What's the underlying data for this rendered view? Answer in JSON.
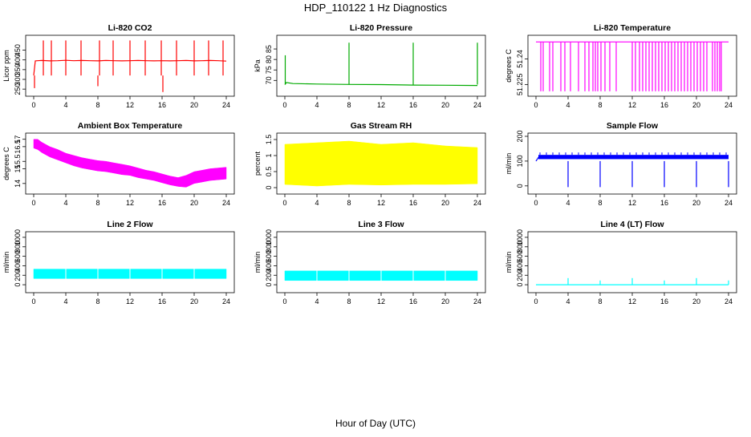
{
  "figure": {
    "title": "HDP_110122  1 Hz Diagnostics",
    "xlabel": "Hour of Day (UTC)"
  },
  "chart_data": [
    {
      "id": "co2",
      "type": "line",
      "title": "Li-820 CO2",
      "ylabel": "Licor ppm",
      "color": "#ff0000",
      "xlim": [
        0,
        24
      ],
      "ylim": [
        230,
        510
      ],
      "xticks": [
        0,
        4,
        8,
        12,
        16,
        20,
        24
      ],
      "yticks": [
        250,
        300,
        350,
        400,
        450
      ],
      "x": [
        0,
        0.2,
        0.5,
        1,
        2,
        3,
        4,
        5,
        6,
        7,
        8,
        9,
        10,
        11,
        12,
        13,
        14,
        15,
        16,
        17,
        18,
        19,
        20,
        21,
        22,
        23,
        24
      ],
      "y": [
        320,
        395,
        396,
        397,
        395,
        396,
        398,
        396,
        397,
        396,
        395,
        397,
        396,
        395,
        396,
        397,
        396,
        395,
        396,
        395,
        396,
        397,
        395,
        396,
        397,
        396,
        394
      ],
      "spikes_x": [
        1.2,
        2.2,
        4.0,
        5.9,
        8.2,
        9.9,
        12.0,
        13.9,
        15.9,
        17.8,
        20.0,
        21.8,
        23.6
      ],
      "spikes_y": [
        500,
        500,
        500,
        500,
        500,
        500,
        500,
        500,
        500,
        500,
        500,
        500,
        500
      ],
      "dips_x": [
        0.1,
        8.0,
        16.1
      ],
      "dips_y": [
        255,
        265,
        235
      ]
    },
    {
      "id": "pressure",
      "type": "line",
      "title": "Li-820 Pressure",
      "ylabel": "kPa",
      "color": "#00aa00",
      "xlim": [
        0,
        24
      ],
      "ylim": [
        64,
        90
      ],
      "xticks": [
        0,
        4,
        8,
        12,
        16,
        20,
        24
      ],
      "yticks": [
        70,
        75,
        80,
        85
      ],
      "x": [
        0,
        0.2,
        1,
        4,
        8,
        12,
        16,
        20,
        24
      ],
      "y": [
        68,
        69,
        68.5,
        68.3,
        68.1,
        68.0,
        67.8,
        67.7,
        67.6
      ],
      "spikes_x": [
        0.05,
        8.0,
        16.0,
        24.0
      ],
      "spikes_y": [
        82,
        88,
        88,
        88
      ]
    },
    {
      "id": "temperature",
      "type": "line",
      "title": "Li-820 Temperature",
      "ylabel": "degrees C",
      "color": "#ff00ff",
      "xlim": [
        0,
        24
      ],
      "ylim": [
        51.22,
        51.252
      ],
      "xticks": [
        0,
        4,
        8,
        12,
        16,
        20,
        24
      ],
      "yticks": [
        51.225,
        51.24
      ],
      "x": [
        0,
        24
      ],
      "y": [
        51.25,
        51.25
      ],
      "dips_x": [
        0.6,
        0.9,
        1.7,
        2.1,
        3.1,
        3.6,
        4.3,
        5.3,
        6.1,
        6.6,
        7.1,
        7.4,
        7.7,
        8.1,
        8.6,
        9.2,
        10.0,
        12.0,
        12.4,
        12.9,
        13.3,
        13.7,
        14.1,
        14.5,
        14.9,
        15.3,
        15.7,
        16.1,
        16.5,
        16.9,
        17.3,
        17.7,
        18.1,
        18.5,
        18.9,
        19.3,
        19.7,
        20.1,
        20.5,
        20.9,
        21.3,
        22.0,
        22.3,
        22.6,
        22.9,
        23.1
      ],
      "dips_y": [
        51.221,
        51.221,
        51.221,
        51.221,
        51.221,
        51.221,
        51.221,
        51.221,
        51.221,
        51.221,
        51.221,
        51.221,
        51.221,
        51.221,
        51.221,
        51.221,
        51.221,
        51.221,
        51.221,
        51.221,
        51.221,
        51.221,
        51.221,
        51.221,
        51.221,
        51.221,
        51.221,
        51.221,
        51.221,
        51.221,
        51.221,
        51.221,
        51.221,
        51.221,
        51.221,
        51.221,
        51.221,
        51.221,
        51.221,
        51.221,
        51.221,
        51.221,
        51.221,
        51.221,
        51.221,
        51.221
      ]
    },
    {
      "id": "ambient",
      "type": "area",
      "title": "Ambient Box Temperature",
      "ylabel": "degrees C",
      "color": "#ff00ff",
      "xlim": [
        0,
        24
      ],
      "ylim": [
        13.5,
        17.2
      ],
      "xticks": [
        0,
        4,
        8,
        12,
        16,
        20,
        24
      ],
      "yticks": [
        14.0,
        15.0,
        15.5,
        16.5,
        17.0
      ],
      "x": [
        0,
        0.5,
        1,
        2,
        3,
        4,
        5,
        6,
        7,
        8,
        9,
        10,
        11,
        12,
        13,
        14,
        15,
        16,
        17,
        18,
        19,
        20,
        21,
        22,
        23,
        24
      ],
      "ymin": [
        16.4,
        16.3,
        16.1,
        15.8,
        15.6,
        15.4,
        15.2,
        15.05,
        14.95,
        14.85,
        14.8,
        14.7,
        14.6,
        14.55,
        14.4,
        14.3,
        14.2,
        14.05,
        13.9,
        13.8,
        13.75,
        14.0,
        14.1,
        14.2,
        14.25,
        14.3
      ],
      "ymax": [
        17.0,
        17.0,
        16.8,
        16.5,
        16.3,
        16.05,
        15.9,
        15.75,
        15.65,
        15.55,
        15.5,
        15.4,
        15.3,
        15.2,
        15.05,
        14.9,
        14.8,
        14.65,
        14.5,
        14.4,
        14.55,
        14.8,
        14.9,
        15.0,
        15.05,
        15.1
      ]
    },
    {
      "id": "rh",
      "type": "area",
      "title": "Gas Stream RH",
      "ylabel": "percent",
      "color": "#ffff00",
      "xlim": [
        0,
        24
      ],
      "ylim": [
        -0.1,
        1.6
      ],
      "xticks": [
        0,
        4,
        8,
        12,
        16,
        20,
        24
      ],
      "yticks": [
        0.0,
        0.5,
        1.0,
        1.5
      ],
      "x": [
        0,
        4,
        8,
        12,
        16,
        20,
        24
      ],
      "ymin": [
        0.1,
        0.05,
        0.1,
        0.08,
        0.1,
        0.1,
        0.12
      ],
      "ymax": [
        1.35,
        1.4,
        1.45,
        1.35,
        1.4,
        1.3,
        1.25
      ]
    },
    {
      "id": "sample",
      "type": "line",
      "title": "Sample Flow",
      "ylabel": "ml/min",
      "color": "#0000ff",
      "xlim": [
        0,
        24
      ],
      "ylim": [
        -20,
        200
      ],
      "xticks": [
        0,
        4,
        8,
        12,
        16,
        20,
        24
      ],
      "yticks": [
        0,
        100,
        200
      ],
      "x": [
        0,
        0.3,
        4,
        8,
        12,
        16,
        20,
        24
      ],
      "y": [
        100,
        115,
        115,
        115,
        115,
        115,
        115,
        115
      ],
      "band_ymin": 108,
      "band_ymax": 125,
      "dips_x": [
        4.0,
        8.0,
        12.0,
        16.0,
        20.0,
        24.0
      ],
      "dips_y": [
        -5,
        -5,
        -5,
        -5,
        -5,
        -5
      ]
    },
    {
      "id": "line2",
      "type": "area",
      "title": "Line 2 Flow",
      "ylabel": "ml/min",
      "color": "#00ffff",
      "xlim": [
        0,
        24
      ],
      "ylim": [
        -100,
        1050
      ],
      "xticks": [
        0,
        4,
        8,
        12,
        16,
        20,
        24
      ],
      "yticks": [
        0,
        200,
        400,
        600,
        800,
        1000
      ],
      "x": [
        0,
        24
      ],
      "ymin": [
        130,
        130
      ],
      "ymax": [
        330,
        330
      ],
      "gaps_x": [
        4,
        8,
        12,
        16,
        20
      ]
    },
    {
      "id": "line3",
      "type": "area",
      "title": "Line 3 Flow",
      "ylabel": "ml/min",
      "color": "#00ffff",
      "xlim": [
        0,
        24
      ],
      "ylim": [
        -100,
        1050
      ],
      "xticks": [
        0,
        4,
        8,
        12,
        16,
        20,
        24
      ],
      "yticks": [
        0,
        200,
        400,
        600,
        800,
        1000
      ],
      "x": [
        0,
        24
      ],
      "ymin": [
        90,
        90
      ],
      "ymax": [
        290,
        290
      ],
      "gaps_x": [
        4,
        8,
        12,
        16,
        20
      ]
    },
    {
      "id": "line4",
      "type": "line",
      "title": "Line 4 (LT) Flow",
      "ylabel": "ml/min",
      "color": "#00ffff",
      "xlim": [
        0,
        24
      ],
      "ylim": [
        -100,
        1050
      ],
      "xticks": [
        0,
        4,
        8,
        12,
        16,
        20,
        24
      ],
      "yticks": [
        0,
        200,
        400,
        600,
        800,
        1000
      ],
      "x": [
        0,
        24
      ],
      "y": [
        0,
        0
      ],
      "spikes_x": [
        4,
        8,
        12,
        16,
        20,
        24
      ],
      "spikes_y": [
        140,
        90,
        140,
        90,
        140,
        90
      ]
    }
  ]
}
